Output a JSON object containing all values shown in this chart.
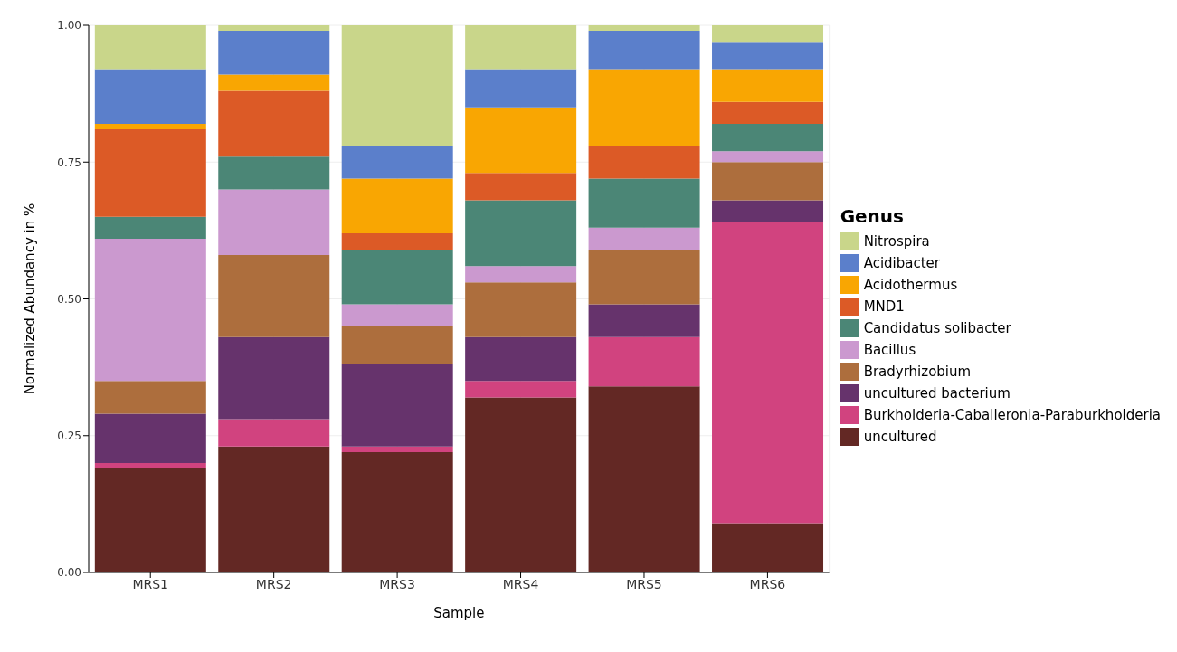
{
  "chart_data": {
    "type": "bar",
    "stacked": true,
    "xlabel": "Sample",
    "ylabel": "Normalized Abundancy in %",
    "legend_title": "Genus",
    "legend": "right",
    "grid": true,
    "categories": [
      "MRS1",
      "MRS2",
      "MRS3",
      "MRS4",
      "MRS5",
      "MRS6"
    ],
    "ylim": [
      0,
      1
    ],
    "yticks": [
      {
        "value": 0,
        "label": "0.00"
      },
      {
        "value": 0.25,
        "label": "0.25"
      },
      {
        "value": 0.5,
        "label": "0.50"
      },
      {
        "value": 0.75,
        "label": "0.75"
      },
      {
        "value": 1,
        "label": "1.00"
      }
    ],
    "series": [
      {
        "name": "uncultured",
        "color": "#632824",
        "values": [
          0.19,
          0.23,
          0.22,
          0.32,
          0.34,
          0.09
        ]
      },
      {
        "name": "Burkholderia-Caballeronia-Paraburkholderia",
        "color": "#d1437f",
        "values": [
          0.01,
          0.05,
          0.01,
          0.03,
          0.09,
          0.55
        ]
      },
      {
        "name": "uncultured bacterium",
        "color": "#66336c",
        "values": [
          0.09,
          0.15,
          0.15,
          0.08,
          0.06,
          0.04
        ]
      },
      {
        "name": "Bradyrhizobium",
        "color": "#ad6e3d",
        "values": [
          0.06,
          0.15,
          0.07,
          0.1,
          0.1,
          0.07
        ]
      },
      {
        "name": "Bacillus",
        "color": "#cb99cf",
        "values": [
          0.26,
          0.12,
          0.04,
          0.03,
          0.04,
          0.02
        ]
      },
      {
        "name": "Candidatus solibacter",
        "color": "#4b8676",
        "values": [
          0.04,
          0.06,
          0.1,
          0.12,
          0.09,
          0.05
        ]
      },
      {
        "name": "MND1",
        "color": "#dc5a26",
        "values": [
          0.16,
          0.12,
          0.03,
          0.05,
          0.06,
          0.04
        ]
      },
      {
        "name": "Acidothermus",
        "color": "#f9a602",
        "values": [
          0.01,
          0.03,
          0.1,
          0.12,
          0.14,
          0.06
        ]
      },
      {
        "name": "Acidibacter",
        "color": "#5b7fcb",
        "values": [
          0.1,
          0.08,
          0.06,
          0.07,
          0.07,
          0.05
        ]
      },
      {
        "name": "Nitrospira",
        "color": "#c9d68a",
        "values": [
          0.08,
          0.01,
          0.22,
          0.08,
          0.01,
          0.03
        ]
      }
    ]
  }
}
